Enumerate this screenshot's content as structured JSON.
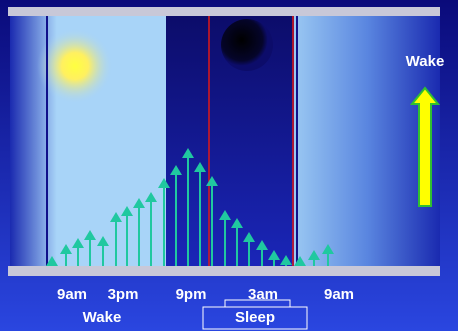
{
  "time_labels": [
    "9am",
    "3pm",
    "9pm",
    "3am",
    "9am"
  ],
  "phase_labels": {
    "wake": "Wake",
    "sleep": "Sleep"
  },
  "side_label": "Wake"
}
